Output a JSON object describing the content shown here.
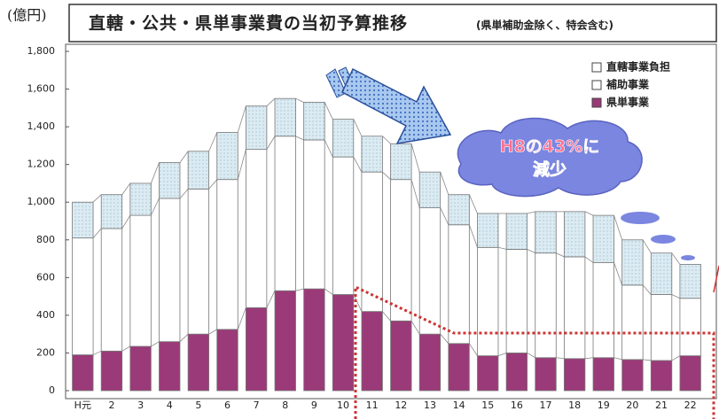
{
  "chart_data": {
    "type": "stacked-bar",
    "unit_label": "(億円)",
    "title": "直轄・公共・県単事業費の当初予算推移",
    "subtitle": "(県単補助金除く、特会含む)",
    "annotation": [
      "H8の43%に",
      "減少"
    ],
    "categories": [
      "H元",
      "2",
      "3",
      "4",
      "5",
      "6",
      "7",
      "8",
      "9",
      "10",
      "11",
      "12",
      "13",
      "14",
      "15",
      "16",
      "17",
      "18",
      "19",
      "20",
      "21",
      "22"
    ],
    "series": [
      {
        "name": "県単事業",
        "color": "#9b3a78",
        "values": [
          190,
          210,
          235,
          260,
          300,
          325,
          440,
          530,
          540,
          510,
          420,
          370,
          300,
          250,
          185,
          200,
          175,
          170,
          175,
          165,
          160,
          185
        ]
      },
      {
        "name": "補助事業",
        "color": "#ffffff",
        "values": [
          620,
          650,
          695,
          760,
          770,
          795,
          840,
          820,
          790,
          730,
          740,
          750,
          670,
          630,
          575,
          550,
          555,
          540,
          505,
          395,
          350,
          305
        ]
      },
      {
        "name": "直轄事業負担",
        "color": "#d6e7ef",
        "values": [
          190,
          180,
          170,
          190,
          200,
          250,
          230,
          200,
          200,
          200,
          190,
          190,
          190,
          160,
          180,
          190,
          220,
          240,
          250,
          240,
          220,
          180
        ]
      }
    ],
    "ylim": [
      0,
      1800
    ],
    "yticks": [
      0,
      200,
      400,
      600,
      800,
      {
        "value": 1000,
        "label": "1,000"
      },
      {
        "value": 1200,
        "label": "1,200"
      },
      {
        "value": 1400,
        "label": "1,400"
      },
      {
        "value": 1600,
        "label": "1,600"
      },
      {
        "value": 1800,
        "label": "1,800"
      }
    ],
    "grid": false,
    "legend": "top-right"
  }
}
